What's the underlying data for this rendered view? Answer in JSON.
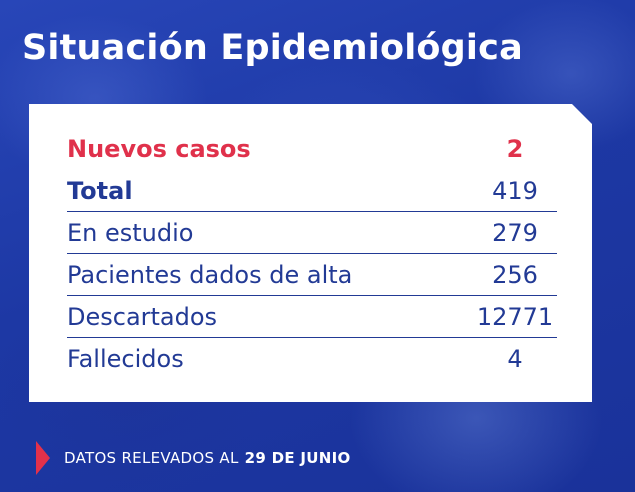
{
  "title": "Situación Epidemiológica",
  "rows": [
    {
      "label": "Nuevos casos",
      "value": "2"
    },
    {
      "label": "Total",
      "value": "419"
    },
    {
      "label": "En estudio",
      "value": "279"
    },
    {
      "label": "Pacientes dados de alta",
      "value": "256"
    },
    {
      "label": "Descartados",
      "value": "12771"
    },
    {
      "label": "Fallecidos",
      "value": "4"
    }
  ],
  "footer": {
    "text": "DATOS RELEVADOS AL",
    "date": "29 DE JUNIO"
  },
  "colors": {
    "background": "#1f3aa6",
    "text_blue": "#223a95",
    "accent_red": "#e0314b"
  }
}
